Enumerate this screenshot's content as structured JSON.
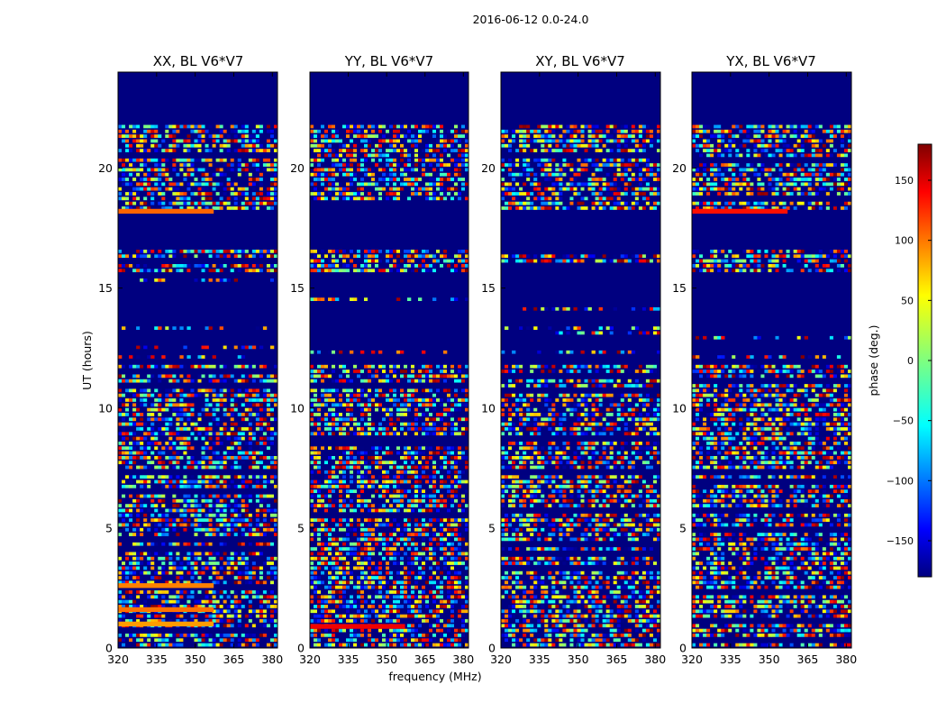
{
  "figure": {
    "suptitle": "2016-06-12 0.0-24.0",
    "xlabel": "frequency (MHz)",
    "ylabel": "UT (hours)",
    "colorbar_label": "phase (deg.)"
  },
  "chart_data": [
    {
      "type": "heatmap",
      "title": "XX, BL V6*V7",
      "x_ticks": [
        "320",
        "335",
        "350",
        "365",
        "380"
      ],
      "y_ticks": [
        "0",
        "5",
        "10",
        "15",
        "20"
      ],
      "xlim": [
        320,
        382
      ],
      "ylim": [
        0,
        24
      ],
      "flagged_bands_hours": [
        [
          21.8,
          24.0
        ],
        [
          16.7,
          18.1
        ],
        [
          11.9,
          15.6
        ]
      ],
      "features": [
        {
          "from": 18.1,
          "to": 18.3,
          "value_deg": 100
        },
        {
          "from": 1.5,
          "to": 1.7,
          "value_deg": 95
        },
        {
          "from": 2.5,
          "to": 2.7,
          "value_deg": 90
        },
        {
          "from": 0.9,
          "to": 1.1,
          "value_deg": 80
        }
      ]
    },
    {
      "type": "heatmap",
      "title": "YY, BL V6*V7",
      "x_ticks": [
        "320",
        "335",
        "350",
        "365",
        "380"
      ],
      "y_ticks": [
        "0",
        "5",
        "10",
        "15",
        "20"
      ],
      "xlim": [
        320,
        382
      ],
      "ylim": [
        0,
        24
      ],
      "flagged_bands_hours": [
        [
          21.8,
          24.0
        ],
        [
          16.7,
          18.1
        ],
        [
          11.9,
          15.6
        ]
      ],
      "features": [
        {
          "from": 18.1,
          "to": 18.4,
          "value_deg": -180
        },
        {
          "from": 0.8,
          "to": 1.0,
          "value_deg": 140
        }
      ]
    },
    {
      "type": "heatmap",
      "title": "XY, BL V6*V7",
      "x_ticks": [
        "320",
        "335",
        "350",
        "365",
        "380"
      ],
      "y_ticks": [
        "0",
        "5",
        "10",
        "15",
        "20"
      ],
      "xlim": [
        320,
        382
      ],
      "ylim": [
        0,
        24
      ],
      "flagged_bands_hours": [
        [
          21.8,
          24.0
        ],
        [
          16.7,
          18.1
        ],
        [
          11.9,
          15.6
        ]
      ],
      "features": []
    },
    {
      "type": "heatmap",
      "title": "YX, BL V6*V7",
      "x_ticks": [
        "320",
        "335",
        "350",
        "365",
        "380"
      ],
      "y_ticks": [
        "0",
        "5",
        "10",
        "15",
        "20"
      ],
      "xlim": [
        320,
        382
      ],
      "ylim": [
        0,
        24
      ],
      "flagged_bands_hours": [
        [
          21.8,
          24.0
        ],
        [
          16.7,
          18.1
        ],
        [
          11.9,
          15.6
        ]
      ],
      "features": [
        {
          "from": 18.1,
          "to": 18.3,
          "value_deg": 130
        }
      ]
    }
  ],
  "colorbar": {
    "colormap": "jet",
    "range": [
      -180,
      180
    ],
    "ticks": [
      {
        "value": 150,
        "label": "150"
      },
      {
        "value": 100,
        "label": "100"
      },
      {
        "value": 50,
        "label": "50"
      },
      {
        "value": 0,
        "label": "0"
      },
      {
        "value": -50,
        "label": "−50"
      },
      {
        "value": -100,
        "label": "−100"
      },
      {
        "value": -150,
        "label": "−150"
      }
    ]
  }
}
